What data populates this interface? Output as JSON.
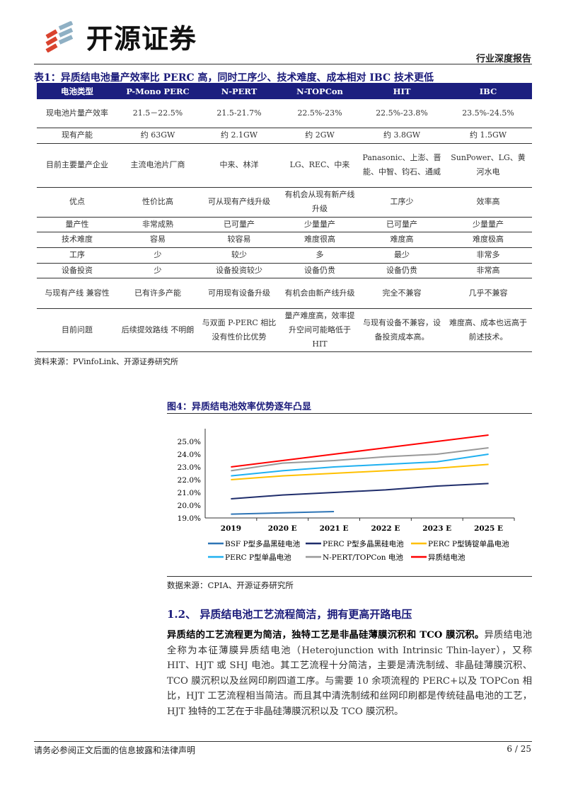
{
  "header": {
    "brand": "开源证券",
    "report_type": "行业深度报告"
  },
  "table": {
    "title": "表1：异质结电池量产效率比 PERC 高，同时工序少、技术难度、成本相对 IBC 技术更低",
    "columns": [
      "电池类型",
      "P-Mono PERC",
      "N-PERT",
      "N-TOPCon",
      "HIT",
      "IBC"
    ],
    "rows": [
      [
        "现电池片量产效率",
        "21.5－22.5%",
        "21.5-21.7%",
        "22.5%-23%",
        "22.5%-23.8%",
        "23.5%-24.5%"
      ],
      [
        "现有产能",
        "约 63GW",
        "约 2.1GW",
        "约 2GW",
        "约 3.8GW",
        "约 1.5GW"
      ],
      [
        "目前主要量产企业",
        "主流电池片厂商",
        "中来、林洋",
        "LG、REC、中来",
        "Panasonic、上澎、晋能、中智、钧石、通威",
        "SunPower、LG、黄河水电"
      ],
      [
        "优点",
        "性价比高",
        "可从现有产线升级",
        "有机会从现有新产线升级",
        "工序少",
        "效率高"
      ],
      [
        "量产性",
        "非常成熟",
        "已可量产",
        "少量量产",
        "已可量产",
        "少量量产"
      ],
      [
        "技术难度",
        "容易",
        "较容易",
        "难度很高",
        "难度高",
        "难度极高"
      ],
      [
        "工序",
        "少",
        "较少",
        "多",
        "最少",
        "非常多"
      ],
      [
        "设备投资",
        "少",
        "设备投资较少",
        "设备仍贵",
        "设备仍贵",
        "非常高"
      ],
      [
        "与现有产线 兼容性",
        "已有许多产能",
        "可用现有设备升级",
        "有机会由新产线升级",
        "完全不兼容",
        "几乎不兼容"
      ],
      [
        "目前问题",
        "后续提效路线 不明朗",
        "与双面 P-PERC 相比没有性价比优势",
        "量产难度高，效率提升空间可能略低于 HIT",
        "与现有设备不兼容，设备投资成本高。",
        "难度高、成本也远高于前述技术。"
      ]
    ],
    "source": "资料来源：PVinfoLink、开源证券研究所"
  },
  "figure": {
    "title": "图4：异质结电池效率优势逐年凸显",
    "source": "数据来源：CPIA、开源证券研究所"
  },
  "chart_data": {
    "type": "line",
    "categories": [
      "2019",
      "2020 E",
      "2021 E",
      "2022 E",
      "2023 E",
      "2025 E"
    ],
    "ylim": [
      19,
      25.5
    ],
    "yticks": [
      "19.0%",
      "20.0%",
      "21.0%",
      "22.0%",
      "23.0%",
      "24.0%",
      "25.0%"
    ],
    "legend_position": "bottom",
    "grid": false,
    "series": [
      {
        "name": "BSF P型多晶黑硅电池",
        "color": "#2e75b6",
        "values": [
          19.3,
          19.4,
          19.5,
          null,
          null,
          null
        ]
      },
      {
        "name": "PERC P型多晶黑硅电池",
        "color": "#1f2d6b",
        "values": [
          20.5,
          20.8,
          21.0,
          21.2,
          21.5,
          21.7
        ]
      },
      {
        "name": "PERC P型铸锭单晶电池",
        "color": "#ffc000",
        "values": [
          22.0,
          22.3,
          22.5,
          22.7,
          22.9,
          23.2
        ]
      },
      {
        "name": "PERC P型单晶电池",
        "color": "#1fb0f0",
        "values": [
          22.3,
          22.7,
          23.0,
          23.2,
          23.4,
          24.0
        ]
      },
      {
        "name": "N-PERT/TOPCon 电池",
        "color": "#999999",
        "values": [
          22.7,
          23.3,
          23.5,
          23.8,
          24.0,
          24.5
        ]
      },
      {
        "name": "异质结电池",
        "color": "#ff0000",
        "values": [
          23.0,
          23.5,
          24.0,
          24.5,
          25.0,
          25.5
        ]
      }
    ]
  },
  "section": {
    "title": "1.2、 异质结电池工艺流程简洁，拥有更高开路电压",
    "lead": "异质结的工艺流程更为简洁，独特工艺是非晶硅薄膜沉积和 TCO 膜沉积。",
    "body": "异质结电池全称为本征薄膜异质结电池（Heterojunction with Intrinsic Thin-layer），又称 HIT、HJT 或 SHJ 电池。其工艺流程十分简洁，主要是清洗制绒、非晶硅薄膜沉积、TCO 膜沉积以及丝网印刷四道工序。与需要 10 余项流程的 PERC+以及 TOPCon 相比，HJT 工艺流程相当简洁。而且其中清洗制绒和丝网印刷都是传统硅晶电池的工艺，HJT 独特的工艺在于非晶硅薄膜沉积以及 TCO 膜沉积。"
  },
  "footer": {
    "disclaimer": "请务必参阅正文后面的信息披露和法律声明",
    "page": "6 / 25"
  }
}
